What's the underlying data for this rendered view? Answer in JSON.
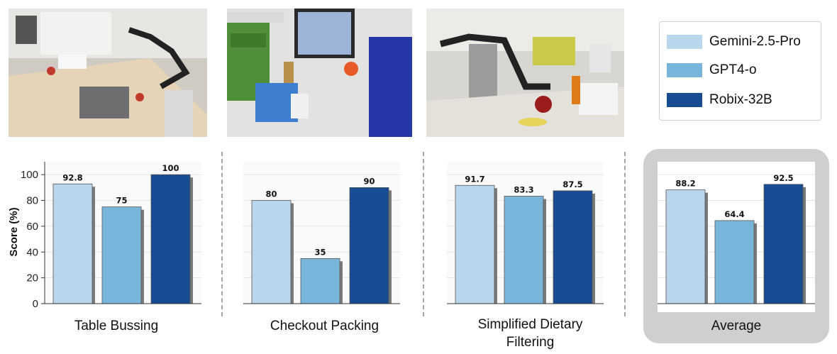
{
  "y_axis": {
    "label": "Score (%)",
    "ticks": [
      "0",
      "20",
      "40",
      "60",
      "80",
      "100"
    ]
  },
  "legend": [
    {
      "label": "Gemini-2.5-Pro",
      "color": "#b9d6ec"
    },
    {
      "label": "GPT4-o",
      "color": "#79b5da"
    },
    {
      "label": "Robix-32B",
      "color": "#174b92"
    }
  ],
  "titles": {
    "table_bussing": "Table Bussing",
    "checkout_packing": "Checkout Packing",
    "dietary_line1": "Simplified Dietary",
    "dietary_line2": "Filtering",
    "average": "Average"
  },
  "chart_data": [
    {
      "type": "bar",
      "title": "Table Bussing",
      "categories": [
        "Gemini-2.5-Pro",
        "GPT4-o",
        "Robix-32B"
      ],
      "values": [
        92.8,
        75,
        100
      ],
      "value_labels": [
        "92.8",
        "75",
        "100"
      ],
      "ylabel": "Score (%)",
      "ylim": [
        0,
        110
      ]
    },
    {
      "type": "bar",
      "title": "Checkout Packing",
      "categories": [
        "Gemini-2.5-Pro",
        "GPT4-o",
        "Robix-32B"
      ],
      "values": [
        80,
        35,
        90
      ],
      "value_labels": [
        "80",
        "35",
        "90"
      ],
      "ylim": [
        0,
        110
      ]
    },
    {
      "type": "bar",
      "title": "Simplified Dietary Filtering",
      "categories": [
        "Gemini-2.5-Pro",
        "GPT4-o",
        "Robix-32B"
      ],
      "values": [
        91.7,
        83.3,
        87.5
      ],
      "value_labels": [
        "91.7",
        "83.3",
        "87.5"
      ],
      "ylim": [
        0,
        110
      ]
    },
    {
      "type": "bar",
      "title": "Average",
      "categories": [
        "Gemini-2.5-Pro",
        "GPT4-o",
        "Robix-32B"
      ],
      "values": [
        88.2,
        64.4,
        92.5
      ],
      "value_labels": [
        "88.2",
        "64.4",
        "92.5"
      ],
      "ylim": [
        0,
        110
      ]
    }
  ]
}
